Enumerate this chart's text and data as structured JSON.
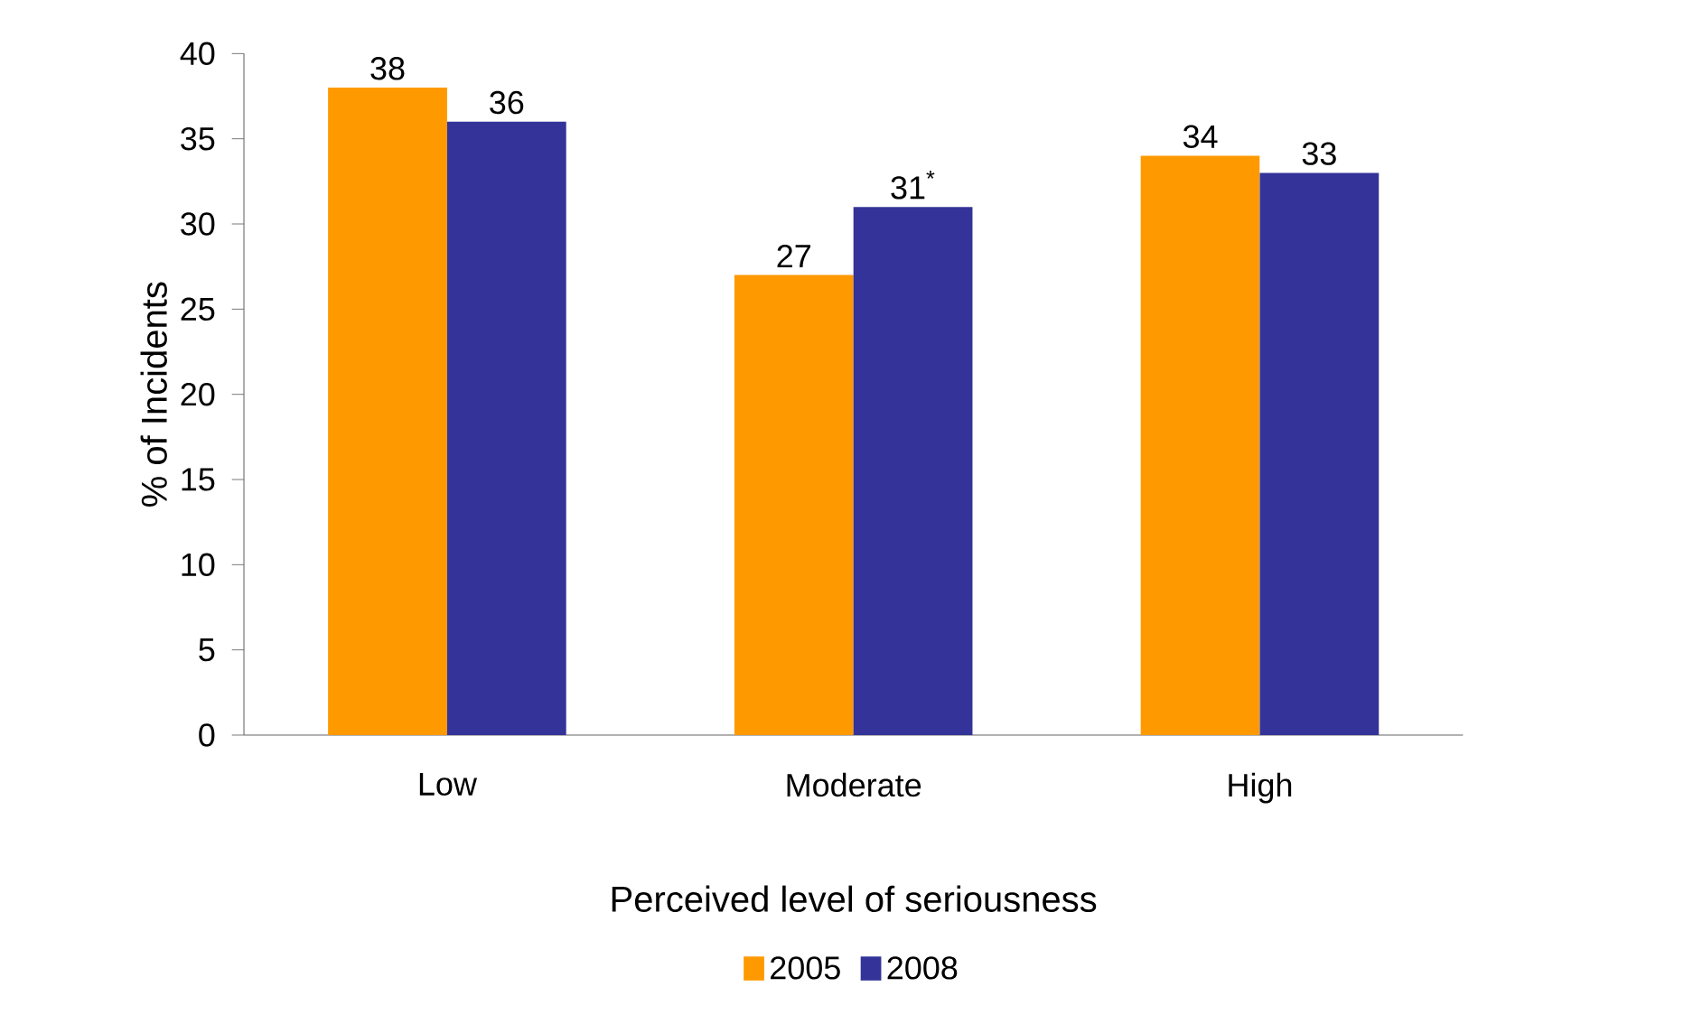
{
  "chart_data": {
    "type": "bar",
    "xlabel": "Perceived level of seriousness",
    "ylabel": "% of Incidents",
    "categories": [
      "Low",
      "Moderate",
      "High"
    ],
    "series": [
      {
        "name": "2005",
        "color": "#ff9900",
        "values": [
          38,
          27,
          34
        ],
        "value_labels": [
          "38",
          "27",
          "34"
        ]
      },
      {
        "name": "2008",
        "color": "#333399",
        "values": [
          36,
          31,
          33
        ],
        "value_labels": [
          "36",
          "31$^{*}$",
          "33"
        ]
      }
    ],
    "ylim": [
      0,
      40
    ],
    "yticks": [
      0,
      5,
      10,
      15,
      20,
      25,
      30,
      35,
      40
    ],
    "legend": "bottom",
    "grid": false
  }
}
